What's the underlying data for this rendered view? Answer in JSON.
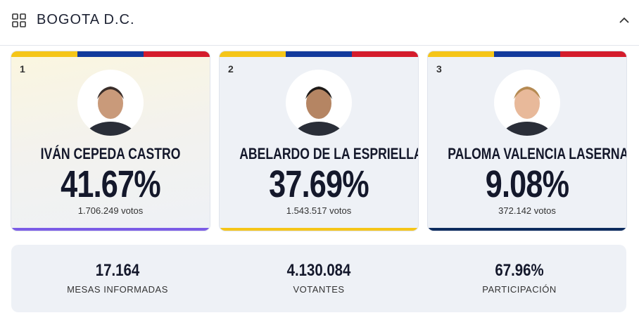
{
  "header": {
    "title": "BOGOTA D.C."
  },
  "candidates": [
    {
      "rank": "1",
      "name": "IVÁN CEPEDA CASTRO",
      "percent": "41.67%",
      "votes": "1.706.249 votos"
    },
    {
      "rank": "2",
      "name": "ABELARDO DE LA ESPRIELLA",
      "percent": "37.69%",
      "votes": "1.543.517 votos"
    },
    {
      "rank": "3",
      "name": "PALOMA VALENCIA LASERNA",
      "percent": "9.08%",
      "votes": "372.142 votos"
    }
  ],
  "stats": [
    {
      "value": "17.164",
      "label": "MESAS INFORMADAS"
    },
    {
      "value": "4.130.084",
      "label": "VOTANTES"
    },
    {
      "value": "67.96%",
      "label": "PARTICIPACIÓN"
    }
  ]
}
